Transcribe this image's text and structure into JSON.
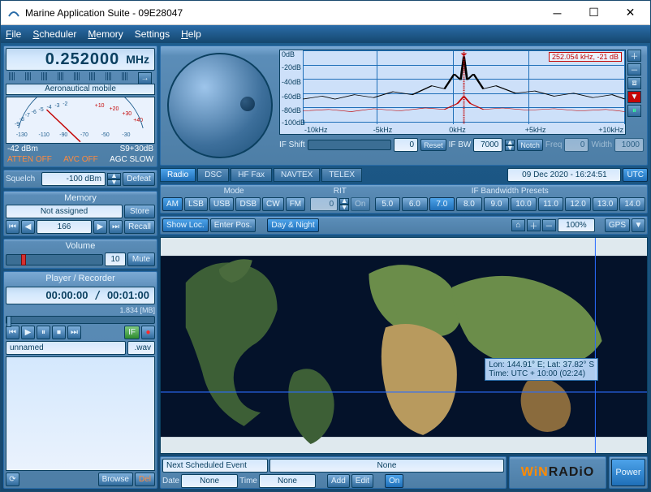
{
  "window": {
    "title": "Marine Application Suite - 09E28047"
  },
  "menu": {
    "file": "File",
    "scheduler": "Scheduler",
    "memory": "Memory",
    "settings": "Settings",
    "help": "Help"
  },
  "freq": {
    "value": "0.252000",
    "unit": "MHz",
    "band": "Aeronautical mobile"
  },
  "meter": {
    "left_label": "-42    dBm",
    "right_label": "S9+30dB",
    "atten": "ATTEN OFF",
    "avc": "AVC OFF",
    "agc": "AGC SLOW",
    "scale_neg": [
      "-2",
      "-3",
      "-4",
      "-5",
      "-6",
      "-7",
      "-8",
      "-9"
    ],
    "scale_pos": [
      "+10",
      "+20",
      "+30",
      "+40"
    ],
    "scale_db": [
      "-130",
      "-110",
      "-90",
      "-70",
      "-50",
      "-30"
    ]
  },
  "squelch": {
    "label": "Squelch",
    "value": "-100 dBm",
    "defeat": "Defeat"
  },
  "memory": {
    "title": "Memory",
    "assigned": "Not assigned",
    "store": "Store",
    "index": "166",
    "recall": "Recall"
  },
  "volume": {
    "title": "Volume",
    "value": "10",
    "mute": "Mute",
    "percent": 15
  },
  "player": {
    "title": "Player / Recorder",
    "pos": "00:00:00",
    "len": "00:01:00",
    "size": "1.834 [MB]",
    "if": "IF",
    "file": "unnamed",
    "ext": ".wav",
    "browse": "Browse",
    "del": "Del"
  },
  "spectrum": {
    "y_ticks": [
      "0dB",
      "-20dB",
      "-40dB",
      "-60dB",
      "-80dB",
      "-100dB"
    ],
    "x_ticks": [
      "-10kHz",
      "-5kHz",
      "0kHz",
      "+5kHz",
      "+10kHz"
    ],
    "cursor": "252.054 kHz, -21 dB",
    "colors": {
      "bg": "#cde0f9",
      "grid": "#1f6fb8",
      "signal": "#000000",
      "noise": "#c40606",
      "cursor_box": "#c40606"
    }
  },
  "ifrow": {
    "shift_label": "IF Shift",
    "shift": "0",
    "reset": "Reset",
    "bw_label": "IF BW",
    "bw": "7000",
    "notch": "Notch",
    "freq_label": "Freq",
    "freq": "0",
    "width_label": "Width",
    "width": "1000"
  },
  "tabs": {
    "radio": "Radio",
    "dsc": "DSC",
    "hffax": "HF Fax",
    "navtex": "NAVTEX",
    "telex": "TELEX"
  },
  "clock": {
    "stamp": "09 Dec 2020 - 16:24:51",
    "utc": "UTC"
  },
  "mode": {
    "title": "Mode",
    "am": "AM",
    "lsb": "LSB",
    "usb": "USB",
    "dsb": "DSB",
    "cw": "CW",
    "fm": "FM"
  },
  "rit": {
    "title": "RIT",
    "value": "0",
    "on": "On"
  },
  "ifbw": {
    "title": "IF Bandwidth Presets",
    "presets": [
      "5.0",
      "6.0",
      "7.0",
      "8.0",
      "9.0",
      "10.0",
      "11.0",
      "12.0",
      "13.0",
      "14.0"
    ]
  },
  "maptool": {
    "showloc": "Show Loc.",
    "enterpos": "Enter Pos.",
    "daynight": "Day & Night",
    "zoom": "100%",
    "gps": "GPS"
  },
  "mapinfo": {
    "line1": "Lon: 144.91° E; Lat: 37.82° S",
    "line2": "Time: UTC + 10:00 (02:24)"
  },
  "sched": {
    "title": "Next Scheduled Event",
    "none": "None",
    "date": "Date",
    "time": "Time",
    "add": "Add",
    "edit": "Edit",
    "on": "On"
  },
  "brand": {
    "a": "WiN",
    "b": "RADiO"
  },
  "power": "Power",
  "colors": {
    "accent": "#2a6ca8",
    "orange": "#ff8a3d"
  }
}
